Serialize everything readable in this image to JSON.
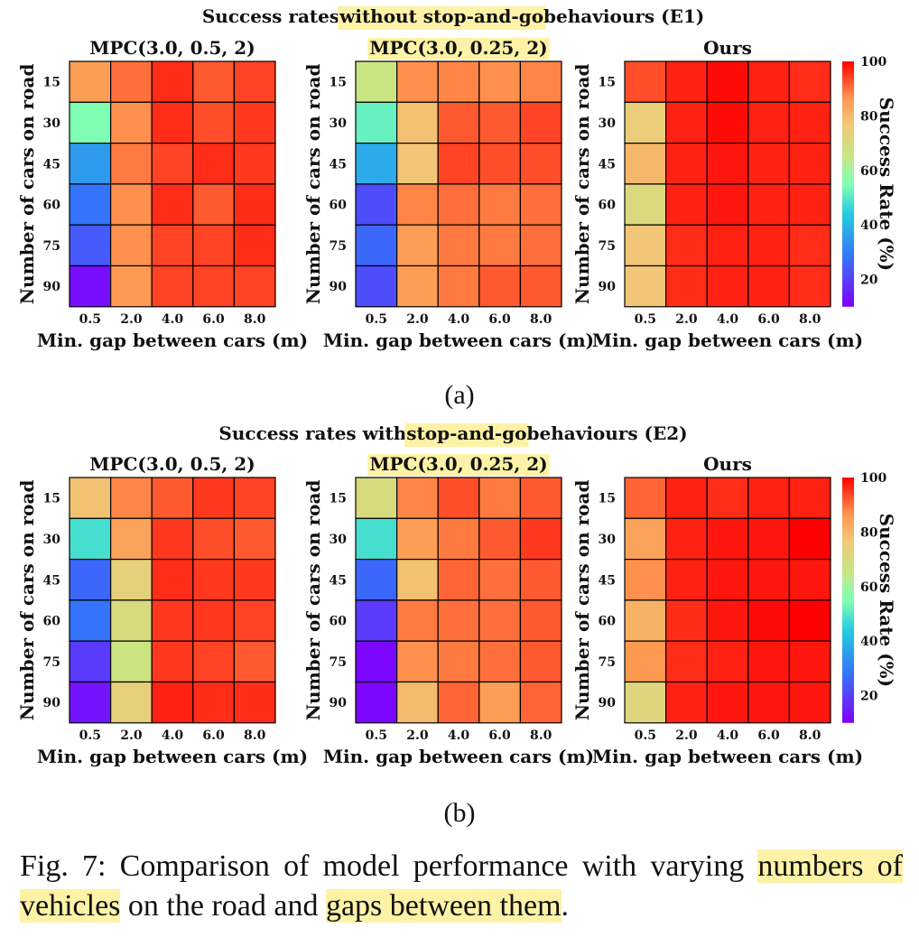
{
  "colors": {
    "highlight": "#fdf2a6",
    "grid": "#000000"
  },
  "colorbar": {
    "label": "Success Rate (%)",
    "ticks": [
      "20",
      "40",
      "60",
      "80",
      "100"
    ],
    "tick_values": [
      20,
      40,
      60,
      80,
      100
    ],
    "range": [
      10,
      100
    ],
    "colormap": "rainbow"
  },
  "panels": [
    {
      "label": "(a)",
      "title_parts": [
        "Success rates ",
        "without stop-and-go",
        " behaviours (E1)"
      ],
      "highlight_index": 1
    },
    {
      "label": "(b)",
      "title_parts": [
        "Success rates with ",
        "stop-and-go",
        " behaviours (E2)"
      ],
      "highlight_index": 1
    }
  ],
  "caption": {
    "prefix": "Fig. 7: ",
    "parts": [
      "Comparison of model performance with varying ",
      "numbers of vehicles",
      " on the road and ",
      "gaps between them",
      "."
    ],
    "highlighted": [
      1,
      3
    ]
  },
  "chart_data": [
    {
      "type": "heatmap",
      "panel": "(a)",
      "title": "MPC(3.0, 0.5, 2)",
      "highlight_title": false,
      "xlabel": "Min. gap between cars (m)",
      "ylabel": "Number of cars on road",
      "x_categories": [
        "0.5",
        "2.0",
        "4.0",
        "6.0",
        "8.0"
      ],
      "y_categories": [
        "15",
        "30",
        "45",
        "60",
        "75",
        "90"
      ],
      "values": [
        [
          85,
          90,
          96,
          92,
          94
        ],
        [
          55,
          87,
          96,
          93,
          95
        ],
        [
          35,
          89,
          94,
          96,
          95
        ],
        [
          28,
          87,
          96,
          92,
          96
        ],
        [
          24,
          87,
          94,
          94,
          96
        ],
        [
          12,
          86,
          94,
          94,
          94
        ]
      ]
    },
    {
      "type": "heatmap",
      "panel": "(a)",
      "title": "MPC(3.0, 0.25, 2)",
      "highlight_title": true,
      "xlabel": "Min. gap between cars (m)",
      "ylabel": "Number of cars on road",
      "x_categories": [
        "0.5",
        "2.0",
        "4.0",
        "6.0",
        "8.0"
      ],
      "y_categories": [
        "15",
        "30",
        "45",
        "60",
        "75",
        "90"
      ],
      "values": [
        [
          66,
          87,
          88,
          87,
          88
        ],
        [
          52,
          78,
          92,
          92,
          94
        ],
        [
          38,
          77,
          94,
          93,
          93
        ],
        [
          22,
          88,
          90,
          89,
          90
        ],
        [
          26,
          85,
          89,
          89,
          90
        ],
        [
          22,
          85,
          89,
          92,
          92
        ]
      ]
    },
    {
      "type": "heatmap",
      "panel": "(a)",
      "title": "Ours",
      "highlight_title": false,
      "xlabel": "Min. gap between cars (m)",
      "ylabel": "Number of cars on road",
      "x_categories": [
        "0.5",
        "2.0",
        "4.0",
        "6.0",
        "8.0"
      ],
      "y_categories": [
        "15",
        "30",
        "45",
        "60",
        "75",
        "90"
      ],
      "values": [
        [
          93,
          97,
          99,
          97,
          96
        ],
        [
          75,
          97,
          99,
          97,
          97
        ],
        [
          80,
          97,
          98,
          97,
          97
        ],
        [
          71,
          97,
          98,
          97,
          97
        ],
        [
          77,
          96,
          97,
          97,
          96
        ],
        [
          77,
          96,
          97,
          97,
          96
        ]
      ]
    },
    {
      "type": "heatmap",
      "panel": "(b)",
      "title": "MPC(3.0, 0.5, 2)",
      "highlight_title": false,
      "xlabel": "Min. gap between cars (m)",
      "ylabel": "Number of cars on road",
      "x_categories": [
        "0.5",
        "2.0",
        "4.0",
        "6.0",
        "8.0"
      ],
      "y_categories": [
        "15",
        "30",
        "45",
        "60",
        "75",
        "90"
      ],
      "values": [
        [
          78,
          88,
          92,
          95,
          94
        ],
        [
          48,
          84,
          95,
          93,
          92
        ],
        [
          26,
          74,
          96,
          95,
          95
        ],
        [
          28,
          70,
          95,
          95,
          94
        ],
        [
          19,
          67,
          95,
          94,
          92
        ],
        [
          13,
          74,
          97,
          96,
          96
        ]
      ]
    },
    {
      "type": "heatmap",
      "panel": "(b)",
      "title": "MPC(3.0, 0.25, 2)",
      "highlight_title": true,
      "xlabel": "Min. gap between cars (m)",
      "ylabel": "Number of cars on road",
      "x_categories": [
        "0.5",
        "2.0",
        "4.0",
        "6.0",
        "8.0"
      ],
      "y_categories": [
        "15",
        "30",
        "45",
        "60",
        "75",
        "90"
      ],
      "values": [
        [
          70,
          88,
          93,
          89,
          92
        ],
        [
          48,
          85,
          89,
          92,
          95
        ],
        [
          26,
          78,
          91,
          90,
          92
        ],
        [
          19,
          89,
          90,
          90,
          92
        ],
        [
          11,
          87,
          89,
          90,
          92
        ],
        [
          11,
          79,
          91,
          85,
          91
        ]
      ]
    },
    {
      "type": "heatmap",
      "panel": "(b)",
      "title": "Ours",
      "highlight_title": false,
      "xlabel": "Min. gap between cars (m)",
      "ylabel": "Number of cars on road",
      "x_categories": [
        "0.5",
        "2.0",
        "4.0",
        "6.0",
        "8.0"
      ],
      "y_categories": [
        "15",
        "30",
        "45",
        "60",
        "75",
        "90"
      ],
      "values": [
        [
          91,
          97,
          96,
          97,
          97
        ],
        [
          84,
          97,
          98,
          98,
          100
        ],
        [
          87,
          97,
          98,
          98,
          98
        ],
        [
          81,
          96,
          98,
          99,
          100
        ],
        [
          86,
          96,
          97,
          98,
          98
        ],
        [
          72,
          97,
          98,
          98,
          98
        ]
      ]
    }
  ]
}
